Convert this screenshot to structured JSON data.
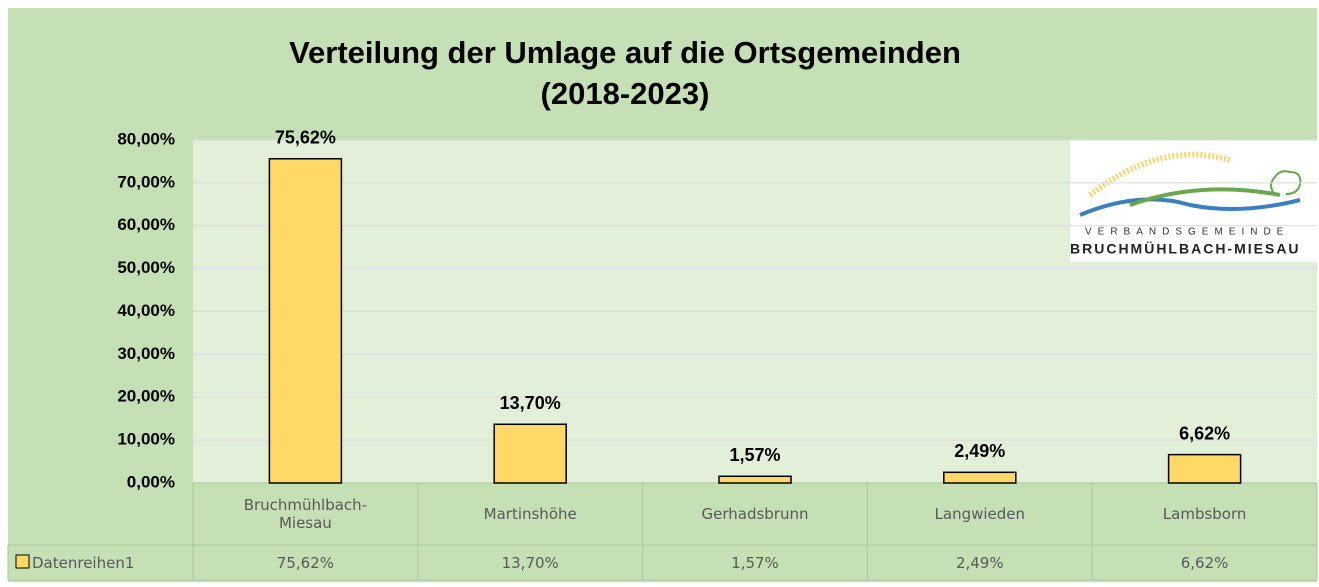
{
  "chart_data": {
    "type": "bar",
    "title": "Verteilung der Umlage auf die Ortsgemeinden",
    "subtitle": "(2018-2023)",
    "categories": [
      "Bruchmühlbach-Miesau",
      "Martinshöhe",
      "Gerhadsbrunn",
      "Langwieden",
      "Lambsborn"
    ],
    "series": [
      {
        "name": "Datenreihen1",
        "color": "#ffd966",
        "values": [
          75.62,
          13.7,
          1.57,
          2.49,
          6.62
        ],
        "value_labels": [
          "75,62%",
          "13,70%",
          "1,57%",
          "2,49%",
          "6,62%"
        ]
      }
    ],
    "ylim": [
      0,
      80
    ],
    "yticks": [
      {
        "value": 0,
        "label": "0,00%"
      },
      {
        "value": 10,
        "label": "10,00%"
      },
      {
        "value": 20,
        "label": "20,00%"
      },
      {
        "value": 30,
        "label": "30,00%"
      },
      {
        "value": 40,
        "label": "40,00%"
      },
      {
        "value": 50,
        "label": "50,00%"
      },
      {
        "value": 60,
        "label": "60,00%"
      },
      {
        "value": 70,
        "label": "70,00%"
      },
      {
        "value": 80,
        "label": "80,00%"
      }
    ],
    "grid": true
  },
  "logo": {
    "line1": "VERBANDSGEMEINDE",
    "line2": "BRUCHMÜHLBACH-MIESAU"
  }
}
